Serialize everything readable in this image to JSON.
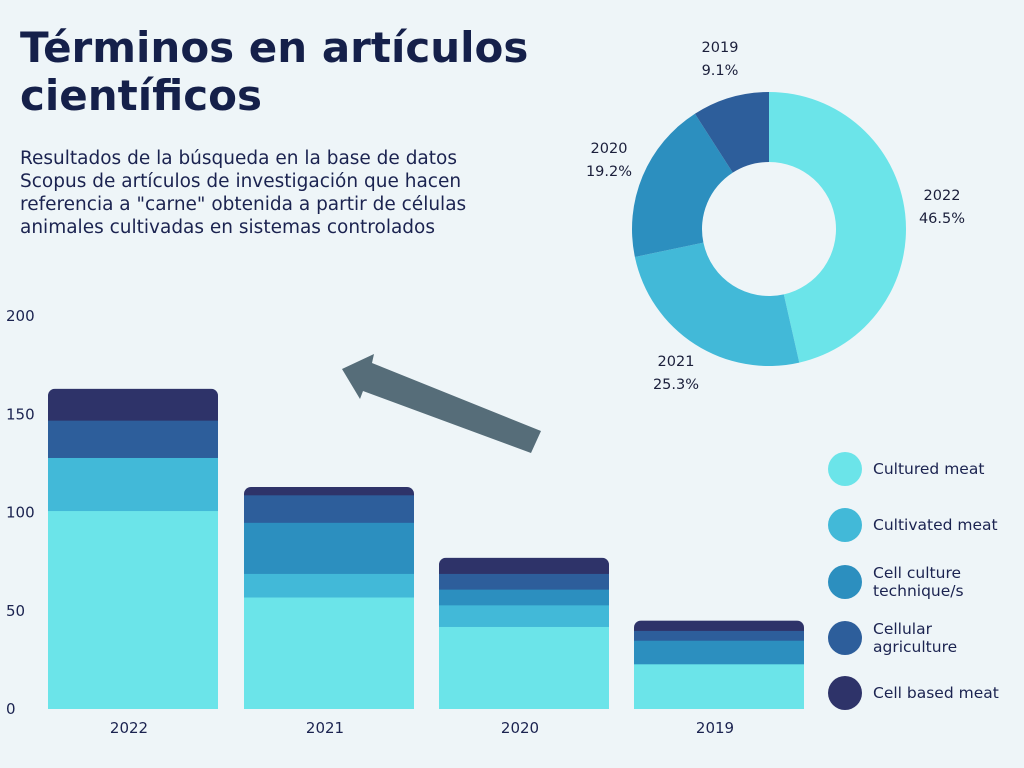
{
  "header": {
    "title": "Términos en artículos científicos",
    "subtitle": "Resultados de la búsqueda en la base de datos Scopus de artículos de investigación que hacen referencia a \"carne\" obtenida a partir de células animales cultivadas en sistemas controlados"
  },
  "chart_data": [
    {
      "type": "bar",
      "stacked": true,
      "categories": [
        "2022",
        "2021",
        "2020",
        "2019"
      ],
      "ylim": [
        0,
        200
      ],
      "yticks": [
        0,
        50,
        100,
        150,
        200
      ],
      "series": [
        {
          "name": "Cultured meat",
          "color": "#6be4e9",
          "values": [
            101,
            57,
            42,
            23
          ]
        },
        {
          "name": "Cultivated meat",
          "color": "#42b9d8",
          "values": [
            27,
            12,
            11,
            0
          ]
        },
        {
          "name": "Cell culture technique/s",
          "color": "#2c8fbf",
          "values": [
            0,
            26,
            8,
            12
          ]
        },
        {
          "name": "Cellular agriculture",
          "color": "#2d5e9b",
          "values": [
            19,
            14,
            8,
            5
          ]
        },
        {
          "name": "Cell based meat",
          "color": "#2e3369",
          "values": [
            16,
            4,
            8,
            5
          ]
        }
      ]
    },
    {
      "type": "pie",
      "donut": true,
      "labels": [
        "2022",
        "2021",
        "2020",
        "2019"
      ],
      "values": [
        46.5,
        25.3,
        19.2,
        9.1
      ],
      "value_labels": [
        "46.5%",
        "25.3%",
        "19.2%",
        "9.1%"
      ],
      "colors": [
        "#6be4e9",
        "#42b9d8",
        "#2c8fbf",
        "#2d5e9b"
      ]
    }
  ],
  "legend": {
    "items": [
      {
        "label": "Cultured meat",
        "color": "#6be4e9"
      },
      {
        "label": "Cultivated meat",
        "color": "#42b9d8"
      },
      {
        "label": "Cell culture technique/s",
        "color": "#2c8fbf"
      },
      {
        "label": "Cellular agriculture",
        "color": "#2d5e9b"
      },
      {
        "label": "Cell based meat",
        "color": "#2e3369"
      }
    ]
  },
  "arrow_color": "#566d79"
}
